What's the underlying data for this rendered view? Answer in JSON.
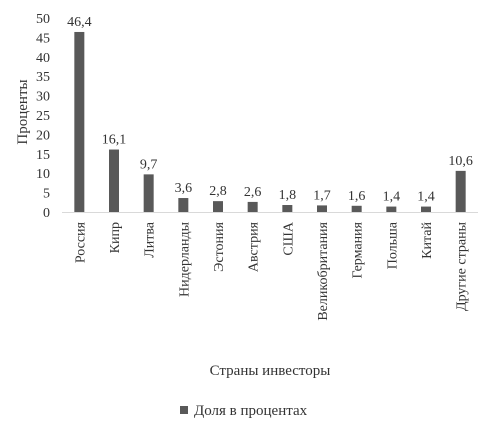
{
  "chart_data": {
    "type": "bar",
    "title": "",
    "xlabel": "Страны инвесторы",
    "ylabel": "Проценты",
    "ylim": [
      0,
      50
    ],
    "yticks": [
      "0",
      "5",
      "10",
      "15",
      "20",
      "25",
      "30",
      "35",
      "40",
      "45",
      "50"
    ],
    "categories": [
      "Россия",
      "Кипр",
      "Литва",
      "Нидерланды",
      "Эстония",
      "Австрия",
      "США",
      "Великобритания",
      "Германия",
      "Польша",
      "Китай",
      "Другие страны"
    ],
    "value_labels": [
      "46,4",
      "16,1",
      "9,7",
      "3,6",
      "2,8",
      "2,6",
      "1,8",
      "1,7",
      "1,6",
      "1,4",
      "1,4",
      "10,6"
    ],
    "series": [
      {
        "name": "Доля в процентах",
        "values": [
          46.4,
          16.1,
          9.7,
          3.6,
          2.8,
          2.6,
          1.8,
          1.7,
          1.6,
          1.4,
          1.4,
          10.6
        ],
        "color": "#595959"
      }
    ],
    "grid": false,
    "legend_position": "bottom"
  }
}
